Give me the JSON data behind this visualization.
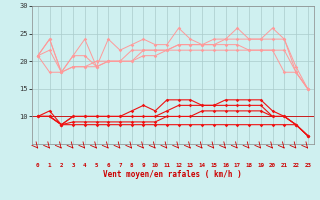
{
  "xlabel": "Vent moyen/en rafales ( km/h )",
  "bg_color": "#cff0f0",
  "grid_color": "#aacccc",
  "x_values": [
    0,
    1,
    2,
    3,
    4,
    5,
    6,
    7,
    8,
    9,
    10,
    11,
    12,
    13,
    14,
    15,
    16,
    17,
    18,
    19,
    20,
    21,
    22,
    23
  ],
  "series_salmon": [
    [
      21,
      24,
      18,
      21,
      24,
      19,
      24,
      22,
      23,
      24,
      23,
      23,
      26,
      24,
      23,
      24,
      24,
      26,
      24,
      24,
      26,
      24,
      19,
      15
    ],
    [
      21,
      24,
      18,
      19,
      19,
      20,
      20,
      20,
      20,
      22,
      22,
      22,
      23,
      23,
      23,
      23,
      24,
      24,
      24,
      24,
      24,
      24,
      18,
      15
    ],
    [
      21,
      22,
      18,
      21,
      21,
      19,
      20,
      20,
      22,
      22,
      22,
      22,
      23,
      23,
      23,
      23,
      23,
      23,
      22,
      22,
      22,
      22,
      18,
      15
    ],
    [
      21,
      18,
      18,
      19,
      19,
      19,
      20,
      20,
      20,
      21,
      21,
      22,
      22,
      22,
      22,
      22,
      22,
      22,
      22,
      22,
      22,
      18,
      18,
      15
    ]
  ],
  "series_red": [
    [
      10,
      11,
      8.5,
      10,
      10,
      10,
      10,
      10,
      11,
      12,
      11,
      13,
      13,
      13,
      12,
      12,
      13,
      13,
      13,
      13,
      11,
      10,
      8.5,
      6.5
    ],
    [
      10,
      10,
      8.5,
      10,
      10,
      10,
      10,
      10,
      10,
      10,
      10,
      11,
      12,
      12,
      12,
      12,
      12,
      12,
      12,
      12,
      10,
      10,
      8.5,
      6.5
    ],
    [
      10,
      10,
      8.5,
      9,
      9,
      9,
      9,
      9,
      9,
      9,
      9,
      10,
      10,
      10,
      11,
      11,
      11,
      11,
      11,
      11,
      10,
      10,
      8.5,
      6.5
    ],
    [
      10,
      10,
      8.5,
      8.5,
      8.5,
      8.5,
      8.5,
      8.5,
      8.5,
      8.5,
      8.5,
      8.5,
      8.5,
      8.5,
      8.5,
      8.5,
      8.5,
      8.5,
      8.5,
      8.5,
      8.5,
      8.5,
      8.5,
      6.5
    ]
  ],
  "salmon_color": "#ff9999",
  "red_color": "#ee1111",
  "ylim": [
    5,
    30
  ],
  "yticks": [
    10,
    15,
    20,
    25,
    30
  ],
  "xlim_min": -0.5,
  "xlim_max": 23.5
}
